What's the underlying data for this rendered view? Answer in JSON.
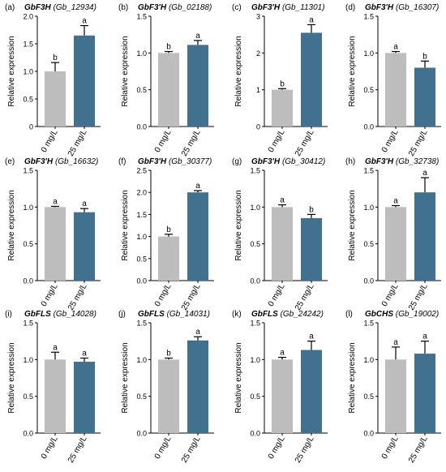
{
  "colors": {
    "control": "#bdbdbd",
    "treatment": "#42718f",
    "axis": "#000000"
  },
  "ylabel": "Relative expression",
  "categories": [
    "0 mg/L",
    "25 mg/L"
  ],
  "chart_data": [
    {
      "type": "bar",
      "panel": "(a)",
      "title": "GbF3H (Gb_12934)",
      "ylabel": "Relative expression",
      "categories": [
        "0 mg/L",
        "25 mg/L"
      ],
      "values": [
        1.0,
        1.65
      ],
      "errors": [
        0.16,
        0.18
      ],
      "letters": [
        "b",
        "a"
      ],
      "ylim": [
        0,
        2
      ],
      "yticks": [
        0,
        0.5,
        1.0,
        1.5,
        2.0
      ],
      "tick_labels": [
        "0",
        "0.5",
        "1.0",
        "1.5",
        "2.0"
      ]
    },
    {
      "type": "bar",
      "panel": "(b)",
      "title": "GbF3'H (Gb_02188)",
      "ylabel": "Relative expression",
      "categories": [
        "0 mg/L",
        "25 mg/L"
      ],
      "values": [
        1.0,
        1.11
      ],
      "errors": [
        0.02,
        0.06
      ],
      "letters": [
        "b",
        "a"
      ],
      "ylim": [
        0,
        1.5
      ],
      "yticks": [
        0,
        0.5,
        1.0,
        1.5
      ],
      "tick_labels": [
        "0.0",
        "0.5",
        "1.0",
        "1.5"
      ]
    },
    {
      "type": "bar",
      "panel": "(c)",
      "title": "GbF3'H (Gb_11301)",
      "ylabel": "Relative expression",
      "categories": [
        "0 mg/L",
        "25 mg/L"
      ],
      "values": [
        1.0,
        2.55
      ],
      "errors": [
        0.03,
        0.22
      ],
      "letters": [
        "b",
        "a"
      ],
      "ylim": [
        0,
        3
      ],
      "yticks": [
        0,
        1,
        2,
        3
      ],
      "tick_labels": [
        "0",
        "1",
        "2",
        "3"
      ]
    },
    {
      "type": "bar",
      "panel": "(d)",
      "title": "GbF3'H (Gb_16307)",
      "ylabel": "Relative expression",
      "categories": [
        "0 mg/L",
        "25 mg/L"
      ],
      "values": [
        1.0,
        0.8
      ],
      "errors": [
        0.02,
        0.09
      ],
      "letters": [
        "a",
        "b"
      ],
      "ylim": [
        0,
        1.5
      ],
      "yticks": [
        0,
        0.5,
        1.0,
        1.5
      ],
      "tick_labels": [
        "0.0",
        "0.5",
        "1.0",
        "1.5"
      ]
    },
    {
      "type": "bar",
      "panel": "(e)",
      "title": "GbF3'H (Gb_16632)",
      "ylabel": "Relative expression",
      "categories": [
        "0 mg/L",
        "25 mg/L"
      ],
      "values": [
        1.0,
        0.93
      ],
      "errors": [
        0.01,
        0.05
      ],
      "letters": [
        "a",
        "a"
      ],
      "ylim": [
        0,
        1.5
      ],
      "yticks": [
        0,
        0.5,
        1.0,
        1.5
      ],
      "tick_labels": [
        "0.0",
        "0.5",
        "1.0",
        "1.5"
      ]
    },
    {
      "type": "bar",
      "panel": "(f)",
      "title": "GbF3'H (Gb_30377)",
      "ylabel": "Relative expression",
      "categories": [
        "0 mg/L",
        "25 mg/L"
      ],
      "values": [
        1.0,
        2.0
      ],
      "errors": [
        0.05,
        0.04
      ],
      "letters": [
        "b",
        "a"
      ],
      "ylim": [
        0,
        2.5
      ],
      "yticks": [
        0,
        0.5,
        1.0,
        1.5,
        2.0,
        2.5
      ],
      "tick_labels": [
        "0.0",
        "0.5",
        "1.0",
        "1.5",
        "2.0",
        "2.5"
      ]
    },
    {
      "type": "bar",
      "panel": "(g)",
      "title": "GbF3'H (Gb_30412)",
      "ylabel": "Relative expression",
      "categories": [
        "0 mg/L",
        "25 mg/L"
      ],
      "values": [
        1.0,
        0.85
      ],
      "errors": [
        0.03,
        0.05
      ],
      "letters": [
        "a",
        "b"
      ],
      "ylim": [
        0,
        1.5
      ],
      "yticks": [
        0,
        0.5,
        1.0,
        1.5
      ],
      "tick_labels": [
        "0.0",
        "0.5",
        "1.0",
        "1.5"
      ]
    },
    {
      "type": "bar",
      "panel": "(h)",
      "title": "GbF3'H (Gb_32738)",
      "ylabel": "Relative expression",
      "categories": [
        "0 mg/L",
        "25 mg/L"
      ],
      "values": [
        1.0,
        1.2
      ],
      "errors": [
        0.02,
        0.2
      ],
      "letters": [
        "a",
        "a"
      ],
      "ylim": [
        0,
        1.5
      ],
      "yticks": [
        0,
        0.5,
        1.0,
        1.5
      ],
      "tick_labels": [
        "0.0",
        "0.5",
        "1.0",
        "1.5"
      ]
    },
    {
      "type": "bar",
      "panel": "(i)",
      "title": "GbFLS (Gb_14028)",
      "ylabel": "Relative expression",
      "categories": [
        "0 mg/L",
        "25 mg/L"
      ],
      "values": [
        1.0,
        0.97
      ],
      "errors": [
        0.1,
        0.05
      ],
      "letters": [
        "a",
        "a"
      ],
      "ylim": [
        0,
        1.5
      ],
      "yticks": [
        0,
        0.5,
        1.0,
        1.5
      ],
      "tick_labels": [
        "0.0",
        "0.5",
        "1.0",
        "1.5"
      ]
    },
    {
      "type": "bar",
      "panel": "(j)",
      "title": "GbFLS (Gb_14031)",
      "ylabel": "Relative expression",
      "categories": [
        "0 mg/L",
        "25 mg/L"
      ],
      "values": [
        1.0,
        1.26
      ],
      "errors": [
        0.02,
        0.05
      ],
      "letters": [
        "b",
        "a"
      ],
      "ylim": [
        0,
        1.5
      ],
      "yticks": [
        0,
        0.5,
        1.0,
        1.5
      ],
      "tick_labels": [
        "0.0",
        "0.5",
        "1.0",
        "1.5"
      ]
    },
    {
      "type": "bar",
      "panel": "(k)",
      "title": "GbFLS (Gb_24242)",
      "ylabel": "Relative expression",
      "categories": [
        "0 mg/L",
        "25 mg/L"
      ],
      "values": [
        1.0,
        1.13
      ],
      "errors": [
        0.03,
        0.12
      ],
      "letters": [
        "a",
        "a"
      ],
      "ylim": [
        0,
        1.5
      ],
      "yticks": [
        0,
        0.5,
        1.0,
        1.5
      ],
      "tick_labels": [
        "0.0",
        "0.5",
        "1.0",
        "1.5"
      ]
    },
    {
      "type": "bar",
      "panel": "(l)",
      "title": "GbCHS (Gb_19002)",
      "ylabel": "Relative expression",
      "categories": [
        "0 mg/L",
        "25 mg/L"
      ],
      "values": [
        1.0,
        1.08
      ],
      "errors": [
        0.17,
        0.17
      ],
      "letters": [
        "a",
        "a"
      ],
      "ylim": [
        0,
        1.5
      ],
      "yticks": [
        0,
        0.5,
        1.0,
        1.5
      ],
      "tick_labels": [
        "0.0",
        "0.5",
        "1.0",
        "1.5"
      ]
    }
  ]
}
